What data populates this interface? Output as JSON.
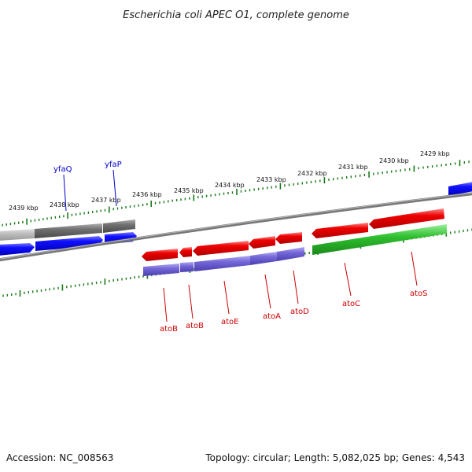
{
  "title": "Escherichia coli APEC O1, complete genome",
  "footer": {
    "accession": "Accession: NC_008563",
    "summary": "Topology: circular; Length: 5,082,025 bp; Genes: 4,543"
  },
  "colors": {
    "forward_strand": "#0000ee",
    "reverse_strand": "#ee0000",
    "atoS_gene": "#22bb22",
    "tick_marks": "#1a7a1a",
    "backbone": "#888888",
    "upper_label": "#0000cc",
    "lower_label": "#cc0000"
  },
  "ruler_labels": [
    "2439 kbp",
    "2438 kbp",
    "2437 kbp",
    "2436 kbp",
    "2435 kbp",
    "2434 kbp",
    "2433 kbp",
    "2432 kbp",
    "2431 kbp",
    "2430 kbp",
    "2429 kbp"
  ],
  "upper_gene_labels": [
    "yfaQ",
    "yfaP"
  ],
  "lower_gene_labels": [
    "atoB",
    "atoB",
    "atoE",
    "atoA",
    "atoD",
    "atoC",
    "atoS"
  ]
}
